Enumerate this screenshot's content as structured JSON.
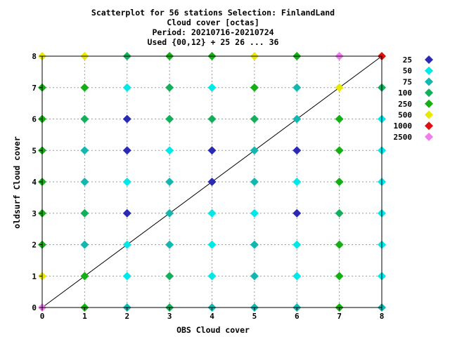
{
  "chart_data": {
    "type": "scatter",
    "title_lines": [
      "Scatterplot for   56 stations Selection: FinlandLand",
      "Cloud cover [octas]",
      "Period: 20210716-20210724",
      "Used {00,12} + 25 26 ... 36"
    ],
    "xlabel": "OBS Cloud cover",
    "ylabel": "oldsurf Cloud cover",
    "xlim": [
      0,
      8
    ],
    "ylim": [
      0,
      8
    ],
    "xticks": [
      "0",
      "1",
      "2",
      "3",
      "4",
      "5",
      "6",
      "7",
      "8"
    ],
    "yticks": [
      "0",
      "1",
      "2",
      "3",
      "4",
      "5",
      "6",
      "7",
      "8"
    ],
    "grid": true,
    "diagonal_line": true,
    "legend_position": "right",
    "legend": [
      {
        "label": "25",
        "color": "#2a2ab4"
      },
      {
        "label": "50",
        "color": "#00e8e8"
      },
      {
        "label": "75",
        "color": "#12b8b0"
      },
      {
        "label": "100",
        "color": "#12b05a"
      },
      {
        "label": "250",
        "color": "#12b012"
      },
      {
        "label": "500",
        "color": "#e8e800"
      },
      {
        "label": "1000",
        "color": "#e01010"
      },
      {
        "label": "2500",
        "color": "#f07cf0"
      }
    ],
    "points": [
      {
        "x": 0,
        "y": 8,
        "c": 5
      },
      {
        "x": 1,
        "y": 8,
        "c": 5
      },
      {
        "x": 2,
        "y": 8,
        "c": 3
      },
      {
        "x": 3,
        "y": 8,
        "c": 4
      },
      {
        "x": 4,
        "y": 8,
        "c": 4
      },
      {
        "x": 5,
        "y": 8,
        "c": 5
      },
      {
        "x": 6,
        "y": 8,
        "c": 4
      },
      {
        "x": 7,
        "y": 8,
        "c": 7
      },
      {
        "x": 8,
        "y": 8,
        "c": 6
      },
      {
        "x": 0,
        "y": 7,
        "c": 4
      },
      {
        "x": 1,
        "y": 7,
        "c": 4
      },
      {
        "x": 2,
        "y": 7,
        "c": 1
      },
      {
        "x": 3,
        "y": 7,
        "c": 3
      },
      {
        "x": 4,
        "y": 7,
        "c": 1
      },
      {
        "x": 5,
        "y": 7,
        "c": 4
      },
      {
        "x": 6,
        "y": 7,
        "c": 2
      },
      {
        "x": 7,
        "y": 7,
        "c": 5
      },
      {
        "x": 8,
        "y": 7,
        "c": 3
      },
      {
        "x": 0,
        "y": 6,
        "c": 4
      },
      {
        "x": 1,
        "y": 6,
        "c": 3
      },
      {
        "x": 2,
        "y": 6,
        "c": 0
      },
      {
        "x": 3,
        "y": 6,
        "c": 3
      },
      {
        "x": 4,
        "y": 6,
        "c": 3
      },
      {
        "x": 5,
        "y": 6,
        "c": 3
      },
      {
        "x": 6,
        "y": 6,
        "c": 2
      },
      {
        "x": 7,
        "y": 6,
        "c": 4
      },
      {
        "x": 8,
        "y": 6,
        "c": 1
      },
      {
        "x": 0,
        "y": 5,
        "c": 4
      },
      {
        "x": 1,
        "y": 5,
        "c": 2
      },
      {
        "x": 2,
        "y": 5,
        "c": 0
      },
      {
        "x": 3,
        "y": 5,
        "c": 1
      },
      {
        "x": 4,
        "y": 5,
        "c": 0
      },
      {
        "x": 5,
        "y": 5,
        "c": 2
      },
      {
        "x": 6,
        "y": 5,
        "c": 0
      },
      {
        "x": 7,
        "y": 5,
        "c": 4
      },
      {
        "x": 8,
        "y": 5,
        "c": 1
      },
      {
        "x": 0,
        "y": 4,
        "c": 4
      },
      {
        "x": 1,
        "y": 4,
        "c": 2
      },
      {
        "x": 2,
        "y": 4,
        "c": 1
      },
      {
        "x": 3,
        "y": 4,
        "c": 2
      },
      {
        "x": 4,
        "y": 4,
        "c": 0
      },
      {
        "x": 5,
        "y": 4,
        "c": 2
      },
      {
        "x": 6,
        "y": 4,
        "c": 1
      },
      {
        "x": 7,
        "y": 4,
        "c": 4
      },
      {
        "x": 8,
        "y": 4,
        "c": 1
      },
      {
        "x": 0,
        "y": 3,
        "c": 4
      },
      {
        "x": 1,
        "y": 3,
        "c": 3
      },
      {
        "x": 2,
        "y": 3,
        "c": 0
      },
      {
        "x": 3,
        "y": 3,
        "c": 2
      },
      {
        "x": 4,
        "y": 3,
        "c": 1
      },
      {
        "x": 5,
        "y": 3,
        "c": 1
      },
      {
        "x": 6,
        "y": 3,
        "c": 0
      },
      {
        "x": 7,
        "y": 3,
        "c": 3
      },
      {
        "x": 8,
        "y": 3,
        "c": 1
      },
      {
        "x": 0,
        "y": 2,
        "c": 4
      },
      {
        "x": 1,
        "y": 2,
        "c": 2
      },
      {
        "x": 2,
        "y": 2,
        "c": 1
      },
      {
        "x": 3,
        "y": 2,
        "c": 2
      },
      {
        "x": 4,
        "y": 2,
        "c": 1
      },
      {
        "x": 5,
        "y": 2,
        "c": 2
      },
      {
        "x": 6,
        "y": 2,
        "c": 1
      },
      {
        "x": 7,
        "y": 2,
        "c": 4
      },
      {
        "x": 8,
        "y": 2,
        "c": 1
      },
      {
        "x": 0,
        "y": 1,
        "c": 5
      },
      {
        "x": 1,
        "y": 1,
        "c": 4
      },
      {
        "x": 2,
        "y": 1,
        "c": 1
      },
      {
        "x": 3,
        "y": 1,
        "c": 3
      },
      {
        "x": 4,
        "y": 1,
        "c": 1
      },
      {
        "x": 5,
        "y": 1,
        "c": 2
      },
      {
        "x": 6,
        "y": 1,
        "c": 1
      },
      {
        "x": 7,
        "y": 1,
        "c": 4
      },
      {
        "x": 8,
        "y": 1,
        "c": 1
      },
      {
        "x": 0,
        "y": 0,
        "c": 7
      },
      {
        "x": 1,
        "y": 0,
        "c": 4
      },
      {
        "x": 2,
        "y": 0,
        "c": 2
      },
      {
        "x": 3,
        "y": 0,
        "c": 3
      },
      {
        "x": 4,
        "y": 0,
        "c": 2
      },
      {
        "x": 5,
        "y": 0,
        "c": 2
      },
      {
        "x": 6,
        "y": 0,
        "c": 2
      },
      {
        "x": 7,
        "y": 0,
        "c": 4
      },
      {
        "x": 8,
        "y": 0,
        "c": 2
      }
    ]
  }
}
